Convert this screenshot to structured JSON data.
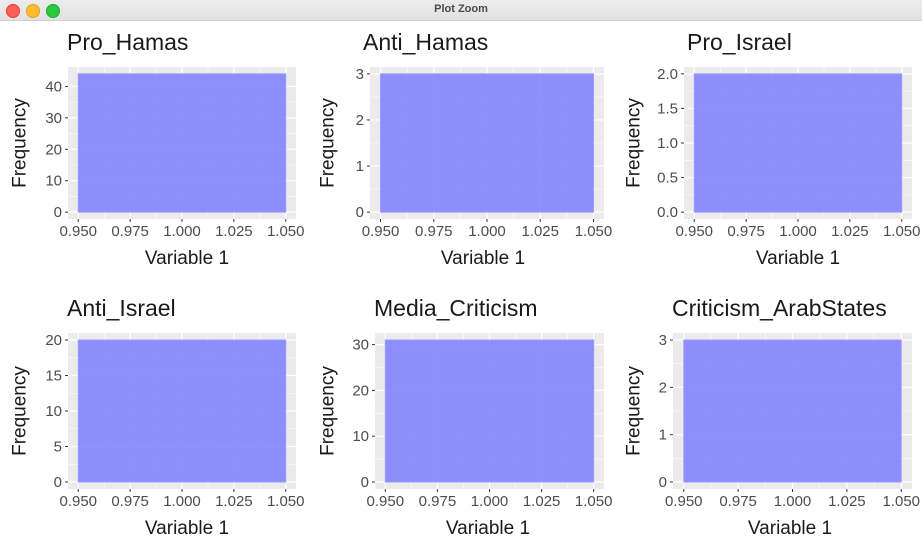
{
  "window": {
    "title": "Plot Zoom"
  },
  "colors": {
    "panel_bg": "#ebebeb",
    "grid": "#ffffff",
    "bar_fill": "#7f7fff",
    "bar_stroke": "#9a9aff",
    "text": "#4d4d4d",
    "title": "#1a1a1a"
  },
  "chart_data": [
    {
      "type": "bar",
      "title": "Pro_Hamas",
      "xlabel": "Variable 1",
      "ylabel": "Frequency",
      "xlim": [
        0.95,
        1.05
      ],
      "x_ticks": [
        "0.950",
        "0.975",
        "1.000",
        "1.025",
        "1.050"
      ],
      "ylim": [
        0,
        44
      ],
      "y_ticks": [
        "0",
        "10",
        "20",
        "30",
        "40"
      ],
      "y_tick_values": [
        0,
        10,
        20,
        30,
        40
      ],
      "bars": [
        {
          "x_start": 0.95,
          "x_end": 1.05,
          "count": 44
        }
      ]
    },
    {
      "type": "bar",
      "title": "Anti_Hamas",
      "xlabel": "Variable 1",
      "ylabel": "Frequency",
      "xlim": [
        0.95,
        1.05
      ],
      "x_ticks": [
        "0.950",
        "0.975",
        "1.000",
        "1.025",
        "1.050"
      ],
      "ylim": [
        0,
        3
      ],
      "y_ticks": [
        "0",
        "1",
        "2",
        "3"
      ],
      "y_tick_values": [
        0,
        1,
        2,
        3
      ],
      "bars": [
        {
          "x_start": 0.95,
          "x_end": 1.05,
          "count": 3
        }
      ]
    },
    {
      "type": "bar",
      "title": "Pro_Israel",
      "xlabel": "Variable 1",
      "ylabel": "Frequency",
      "xlim": [
        0.95,
        1.05
      ],
      "x_ticks": [
        "0.950",
        "0.975",
        "1.000",
        "1.025",
        "1.050"
      ],
      "ylim": [
        0,
        2
      ],
      "y_ticks": [
        "0.0",
        "0.5",
        "1.0",
        "1.5",
        "2.0"
      ],
      "y_tick_values": [
        0,
        0.5,
        1,
        1.5,
        2
      ],
      "bars": [
        {
          "x_start": 0.95,
          "x_end": 1.05,
          "count": 2
        }
      ]
    },
    {
      "type": "bar",
      "title": "Anti_Israel",
      "xlabel": "Variable 1",
      "ylabel": "Frequency",
      "xlim": [
        0.95,
        1.05
      ],
      "x_ticks": [
        "0.950",
        "0.975",
        "1.000",
        "1.025",
        "1.050"
      ],
      "ylim": [
        0,
        20
      ],
      "y_ticks": [
        "0",
        "5",
        "10",
        "15",
        "20"
      ],
      "y_tick_values": [
        0,
        5,
        10,
        15,
        20
      ],
      "bars": [
        {
          "x_start": 0.95,
          "x_end": 1.05,
          "count": 20
        }
      ]
    },
    {
      "type": "bar",
      "title": "Media_Criticism",
      "xlabel": "Variable 1",
      "ylabel": "Frequency",
      "xlim": [
        0.95,
        1.05
      ],
      "x_ticks": [
        "0.950",
        "0.975",
        "1.000",
        "1.025",
        "1.050"
      ],
      "ylim": [
        0,
        31
      ],
      "y_ticks": [
        "0",
        "10",
        "20",
        "30"
      ],
      "y_tick_values": [
        0,
        10,
        20,
        30
      ],
      "bars": [
        {
          "x_start": 0.95,
          "x_end": 1.05,
          "count": 31
        }
      ]
    },
    {
      "type": "bar",
      "title": "Criticism_ArabStates",
      "xlabel": "Variable 1",
      "ylabel": "Frequency",
      "xlim": [
        0.95,
        1.05
      ],
      "x_ticks": [
        "0.950",
        "0.975",
        "1.000",
        "1.025",
        "1.050"
      ],
      "ylim": [
        0,
        3
      ],
      "y_ticks": [
        "0",
        "1",
        "2",
        "3"
      ],
      "y_tick_values": [
        0,
        1,
        2,
        3
      ],
      "bars": [
        {
          "x_start": 0.95,
          "x_end": 1.05,
          "count": 3
        }
      ]
    }
  ]
}
